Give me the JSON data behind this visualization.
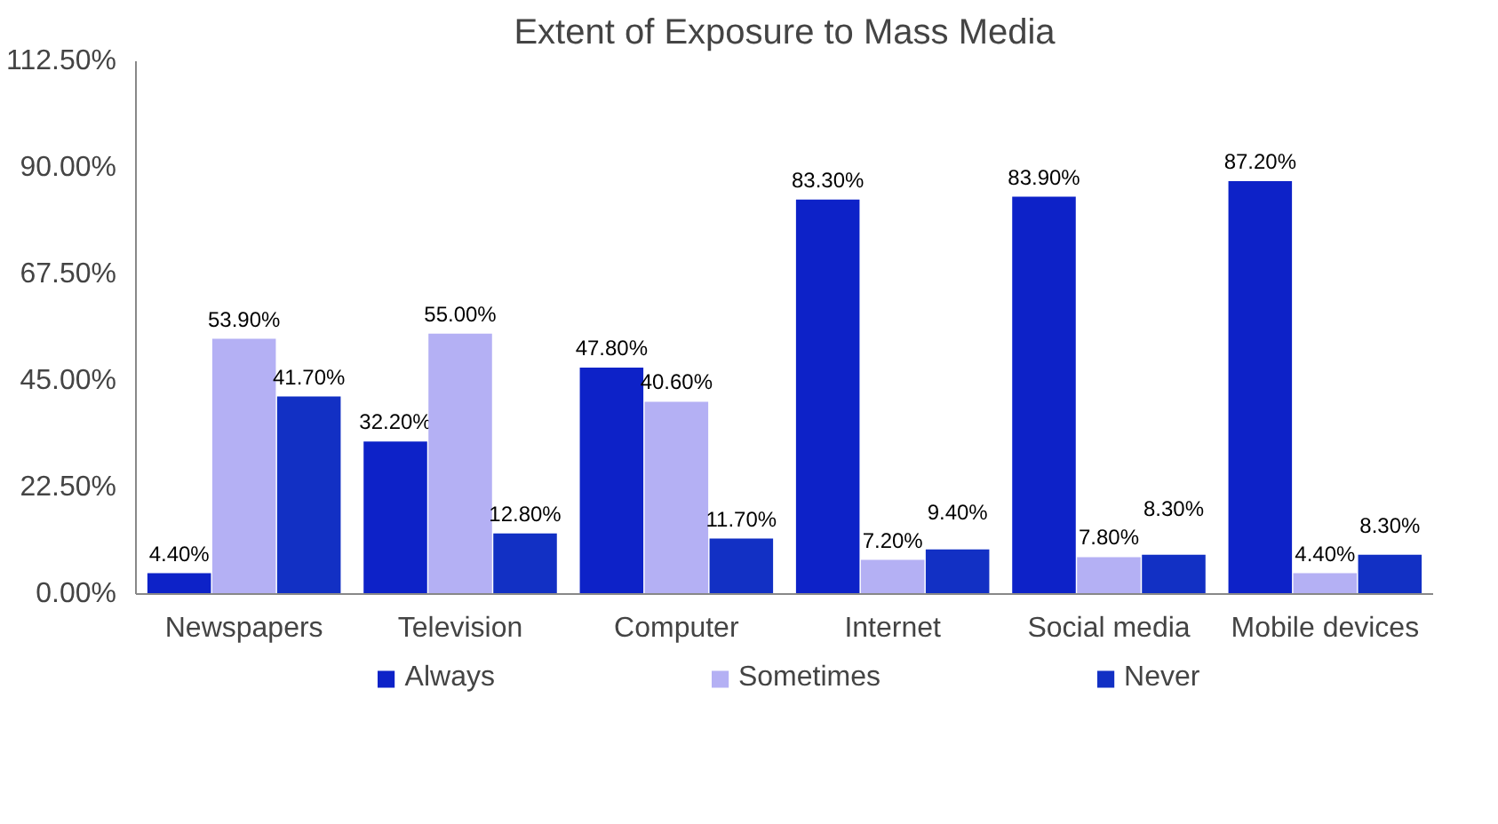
{
  "chart_data": {
    "type": "bar",
    "title": "Extent of Exposure to Mass Media",
    "categories": [
      "Newspapers",
      "Television",
      "Computer",
      "Internet",
      "Social media",
      "Mobile devices"
    ],
    "series": [
      {
        "name": "Always",
        "color": "#0d22c8",
        "values": [
          4.4,
          32.2,
          47.8,
          83.3,
          83.9,
          87.2
        ],
        "value_labels": [
          "4.40%",
          "32.20%",
          "47.80%",
          "83.30%",
          "83.90%",
          "87.20%"
        ]
      },
      {
        "name": "Sometimes",
        "color": "#b4b0f4",
        "values": [
          53.9,
          55.0,
          40.6,
          7.2,
          7.8,
          4.4
        ],
        "value_labels": [
          "53.90%",
          "55.00%",
          "40.60%",
          "7.20%",
          "7.80%",
          "4.40%"
        ]
      },
      {
        "name": "Never",
        "color": "#1230c4",
        "values": [
          41.7,
          12.8,
          11.7,
          9.4,
          8.3,
          8.3
        ],
        "value_labels": [
          "41.70%",
          "12.80%",
          "11.70%",
          "9.40%",
          "8.30%",
          "8.30%"
        ]
      }
    ],
    "ylim": [
      0,
      112.5
    ],
    "yticks": [
      {
        "value": 0,
        "label": "0.00%"
      },
      {
        "value": 22.5,
        "label": "22.50%"
      },
      {
        "value": 45,
        "label": "45.00%"
      },
      {
        "value": 67.5,
        "label": "67.50%"
      },
      {
        "value": 90,
        "label": "90.00%"
      },
      {
        "value": 112.5,
        "label": "112.50%"
      }
    ],
    "grid": false,
    "legend": "bottom"
  }
}
